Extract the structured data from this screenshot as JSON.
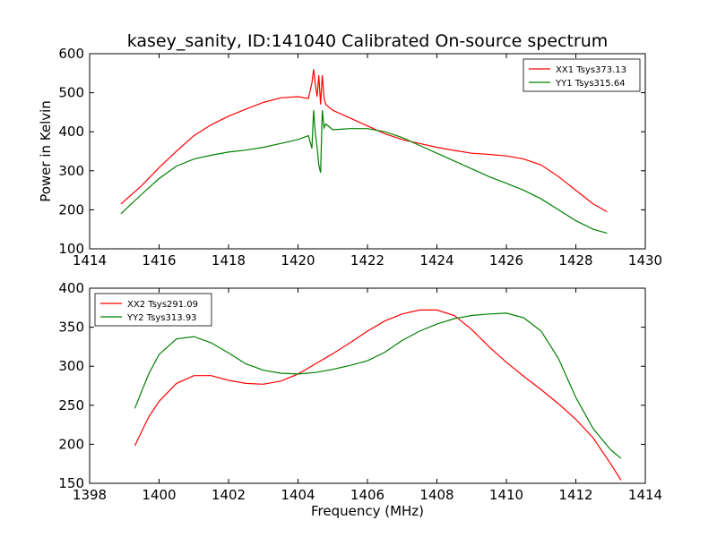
{
  "figure": {
    "title": "kasey_sanity, ID:141040 Calibrated On-source spectrum"
  },
  "chart_data": [
    {
      "type": "line",
      "title": "kasey_sanity, ID:141040 Calibrated On-source spectrum",
      "xlabel": "",
      "ylabel": "Power in Kelvin",
      "xlim": [
        1414,
        1430
      ],
      "ylim": [
        100,
        600
      ],
      "xticks": [
        1414,
        1416,
        1418,
        1420,
        1422,
        1424,
        1426,
        1428,
        1430
      ],
      "yticks": [
        100,
        200,
        300,
        400,
        500,
        600
      ],
      "legend_position": "top-right",
      "grid": false,
      "series": [
        {
          "name": "XX1 Tsys373.13",
          "color": "#ff0000",
          "x": [
            1414.9,
            1415.5,
            1416.0,
            1416.5,
            1417.0,
            1417.5,
            1418.0,
            1418.5,
            1419.0,
            1419.5,
            1420.0,
            1420.3,
            1420.4,
            1420.45,
            1420.5,
            1420.55,
            1420.6,
            1420.65,
            1420.7,
            1420.75,
            1420.8,
            1421.0,
            1421.5,
            1422.0,
            1422.5,
            1423.0,
            1423.5,
            1424.0,
            1424.5,
            1425.0,
            1425.5,
            1426.0,
            1426.5,
            1427.0,
            1427.5,
            1428.0,
            1428.5,
            1428.9
          ],
          "y": [
            215,
            262,
            308,
            350,
            390,
            418,
            440,
            458,
            475,
            487,
            490,
            485,
            525,
            560,
            520,
            490,
            545,
            470,
            545,
            485,
            470,
            455,
            435,
            415,
            395,
            380,
            370,
            360,
            352,
            345,
            342,
            338,
            330,
            315,
            285,
            250,
            215,
            195
          ]
        },
        {
          "name": "YY1 Tsys315.64",
          "color": "#008000",
          "x": [
            1414.9,
            1415.5,
            1416.0,
            1416.5,
            1417.0,
            1417.5,
            1418.0,
            1418.5,
            1419.0,
            1419.5,
            1420.0,
            1420.3,
            1420.4,
            1420.45,
            1420.5,
            1420.55,
            1420.6,
            1420.65,
            1420.7,
            1420.75,
            1420.8,
            1421.0,
            1421.5,
            1422.0,
            1422.5,
            1423.0,
            1423.5,
            1424.0,
            1424.5,
            1425.0,
            1425.5,
            1426.0,
            1426.5,
            1427.0,
            1427.5,
            1428.0,
            1428.5,
            1428.9
          ],
          "y": [
            190,
            240,
            280,
            312,
            330,
            340,
            348,
            353,
            360,
            370,
            380,
            390,
            357,
            455,
            395,
            360,
            315,
            295,
            455,
            410,
            420,
            405,
            408,
            408,
            400,
            385,
            365,
            345,
            325,
            305,
            285,
            268,
            250,
            228,
            200,
            172,
            150,
            140
          ]
        }
      ]
    },
    {
      "type": "line",
      "title": "",
      "xlabel": "Frequency (MHz)",
      "ylabel": "",
      "xlim": [
        1398,
        1414
      ],
      "ylim": [
        150,
        400
      ],
      "xticks": [
        1398,
        1400,
        1402,
        1404,
        1406,
        1408,
        1410,
        1412,
        1414
      ],
      "yticks": [
        150,
        200,
        250,
        300,
        350,
        400
      ],
      "legend_position": "top-left",
      "grid": false,
      "series": [
        {
          "name": "XX2 Tsys291.09",
          "color": "#ff0000",
          "x": [
            1399.3,
            1399.7,
            1400.0,
            1400.5,
            1401.0,
            1401.5,
            1402.0,
            1402.5,
            1403.0,
            1403.5,
            1404.0,
            1404.5,
            1405.0,
            1405.5,
            1406.0,
            1406.5,
            1407.0,
            1407.5,
            1408.0,
            1408.5,
            1409.0,
            1409.5,
            1410.0,
            1410.5,
            1411.0,
            1411.5,
            1412.0,
            1412.5,
            1413.0,
            1413.3
          ],
          "y": [
            198,
            235,
            255,
            278,
            288,
            288,
            282,
            278,
            277,
            281,
            290,
            303,
            316,
            330,
            345,
            358,
            367,
            372,
            372,
            365,
            347,
            325,
            305,
            287,
            270,
            252,
            232,
            208,
            175,
            154
          ]
        },
        {
          "name": "YY2 Tsys313.93",
          "color": "#008000",
          "x": [
            1399.3,
            1399.7,
            1400.0,
            1400.5,
            1401.0,
            1401.5,
            1402.0,
            1402.5,
            1403.0,
            1403.5,
            1404.0,
            1404.5,
            1405.0,
            1405.5,
            1406.0,
            1406.5,
            1407.0,
            1407.5,
            1408.0,
            1408.5,
            1409.0,
            1409.5,
            1410.0,
            1410.5,
            1411.0,
            1411.5,
            1412.0,
            1412.5,
            1413.0,
            1413.3
          ],
          "y": [
            246,
            290,
            315,
            335,
            338,
            330,
            317,
            303,
            295,
            291,
            290,
            292,
            296,
            301,
            307,
            318,
            333,
            345,
            354,
            361,
            365,
            367,
            368,
            362,
            345,
            310,
            260,
            220,
            193,
            182
          ]
        }
      ]
    }
  ]
}
